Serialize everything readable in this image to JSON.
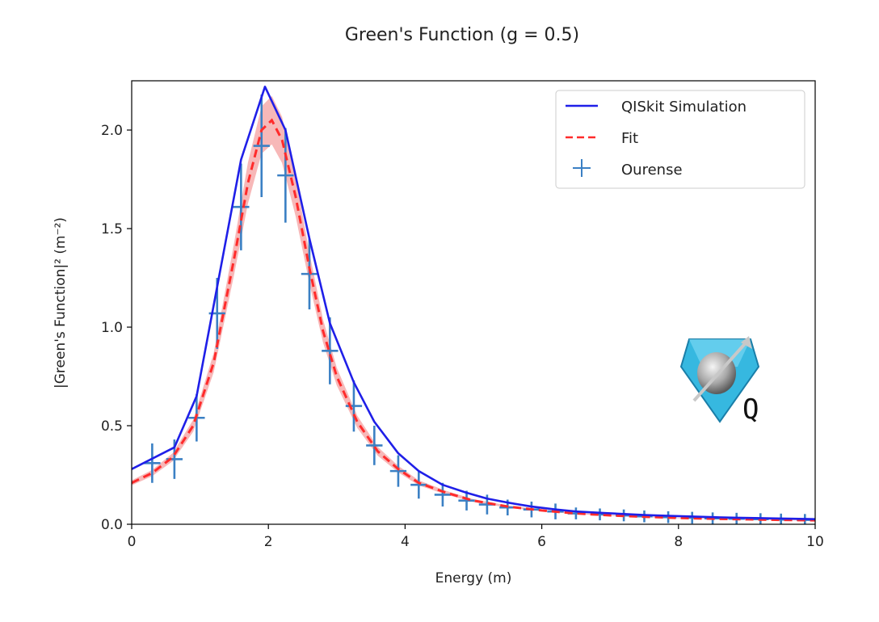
{
  "chart_data": {
    "type": "line",
    "title": "Green's Function (g = 0.5)",
    "xlabel": "Energy (m)",
    "ylabel": "|Green's Function|² (m⁻²)",
    "xlim": [
      0,
      10
    ],
    "ylim": [
      0,
      2.25
    ],
    "xticks": [
      0,
      2,
      4,
      6,
      8,
      10
    ],
    "yticks": [
      0.0,
      0.5,
      1.0,
      1.5,
      2.0
    ],
    "xtick_labels": [
      "0",
      "2",
      "4",
      "6",
      "8",
      "10"
    ],
    "ytick_labels": [
      "0.0",
      "0.5",
      "1.0",
      "1.5",
      "2.0"
    ],
    "grid": false,
    "legend_position": "top-right",
    "series": [
      {
        "name": "QISkit Simulation",
        "style": "solid-line",
        "color": "#1f1fe8",
        "x": [
          0,
          0.625,
          0.95,
          1.6,
          1.95,
          2.25,
          2.6,
          2.9,
          3.25,
          3.55,
          3.9,
          4.2,
          4.55,
          4.9,
          5.2,
          5.5,
          5.85,
          6.2,
          6.5,
          6.85,
          7.2,
          7.5,
          7.85,
          8.2,
          8.5,
          8.85,
          9.2,
          9.5,
          9.85,
          10
        ],
        "y": [
          0.28,
          0.39,
          0.65,
          1.85,
          2.22,
          2.0,
          1.45,
          1.02,
          0.72,
          0.52,
          0.36,
          0.27,
          0.2,
          0.16,
          0.13,
          0.11,
          0.09,
          0.075,
          0.065,
          0.058,
          0.052,
          0.047,
          0.043,
          0.039,
          0.036,
          0.033,
          0.031,
          0.029,
          0.027,
          0.026
        ]
      },
      {
        "name": "Fit",
        "style": "dashed-line",
        "color": "#ff2b2b",
        "band_color": "#f4a0a0",
        "band_halfwidth": 0.06,
        "x": [
          0,
          0.3,
          0.6,
          0.9,
          1.2,
          1.5,
          1.7,
          1.9,
          2.05,
          2.2,
          2.4,
          2.6,
          2.8,
          3.0,
          3.3,
          3.6,
          3.9,
          4.2,
          4.6,
          5.0,
          5.5,
          6.0,
          6.5,
          7.0,
          7.5,
          8.0,
          8.5,
          9.0,
          9.5,
          10
        ],
        "y": [
          0.21,
          0.26,
          0.34,
          0.5,
          0.82,
          1.35,
          1.73,
          2.0,
          2.05,
          1.95,
          1.66,
          1.3,
          0.98,
          0.75,
          0.52,
          0.37,
          0.28,
          0.21,
          0.16,
          0.12,
          0.09,
          0.07,
          0.055,
          0.045,
          0.038,
          0.032,
          0.028,
          0.025,
          0.022,
          0.02
        ]
      },
      {
        "name": "Ourense",
        "style": "errorbar",
        "color": "#3b80c4",
        "x": [
          0.3,
          0.625,
          0.95,
          1.25,
          1.6,
          1.9,
          2.25,
          2.6,
          2.9,
          3.25,
          3.55,
          3.9,
          4.2,
          4.55,
          4.9,
          5.2,
          5.5,
          5.85,
          6.2,
          6.5,
          6.85,
          7.2,
          7.5,
          7.85,
          8.2,
          8.5,
          8.85,
          9.2,
          9.5,
          9.85
        ],
        "y": [
          0.31,
          0.33,
          0.54,
          1.07,
          1.61,
          1.92,
          1.77,
          1.27,
          0.88,
          0.6,
          0.4,
          0.27,
          0.2,
          0.15,
          0.12,
          0.1,
          0.085,
          0.075,
          0.065,
          0.055,
          0.05,
          0.045,
          0.04,
          0.036,
          0.033,
          0.03,
          0.028,
          0.026,
          0.024,
          0.022
        ],
        "yerr": [
          0.1,
          0.1,
          0.12,
          0.18,
          0.22,
          0.26,
          0.24,
          0.18,
          0.17,
          0.13,
          0.1,
          0.08,
          0.07,
          0.06,
          0.05,
          0.05,
          0.04,
          0.04,
          0.04,
          0.03,
          0.03,
          0.03,
          0.03,
          0.03,
          0.03,
          0.03,
          0.03,
          0.03,
          0.03,
          0.03
        ],
        "xerr": 0.12
      }
    ]
  },
  "logo": {
    "label": "Q",
    "colors": {
      "diamond": "#36b8e0",
      "diamond_dark": "#1a7ea8",
      "sphere": "#9c9c9c",
      "arrow": "#c0c0c0"
    }
  }
}
